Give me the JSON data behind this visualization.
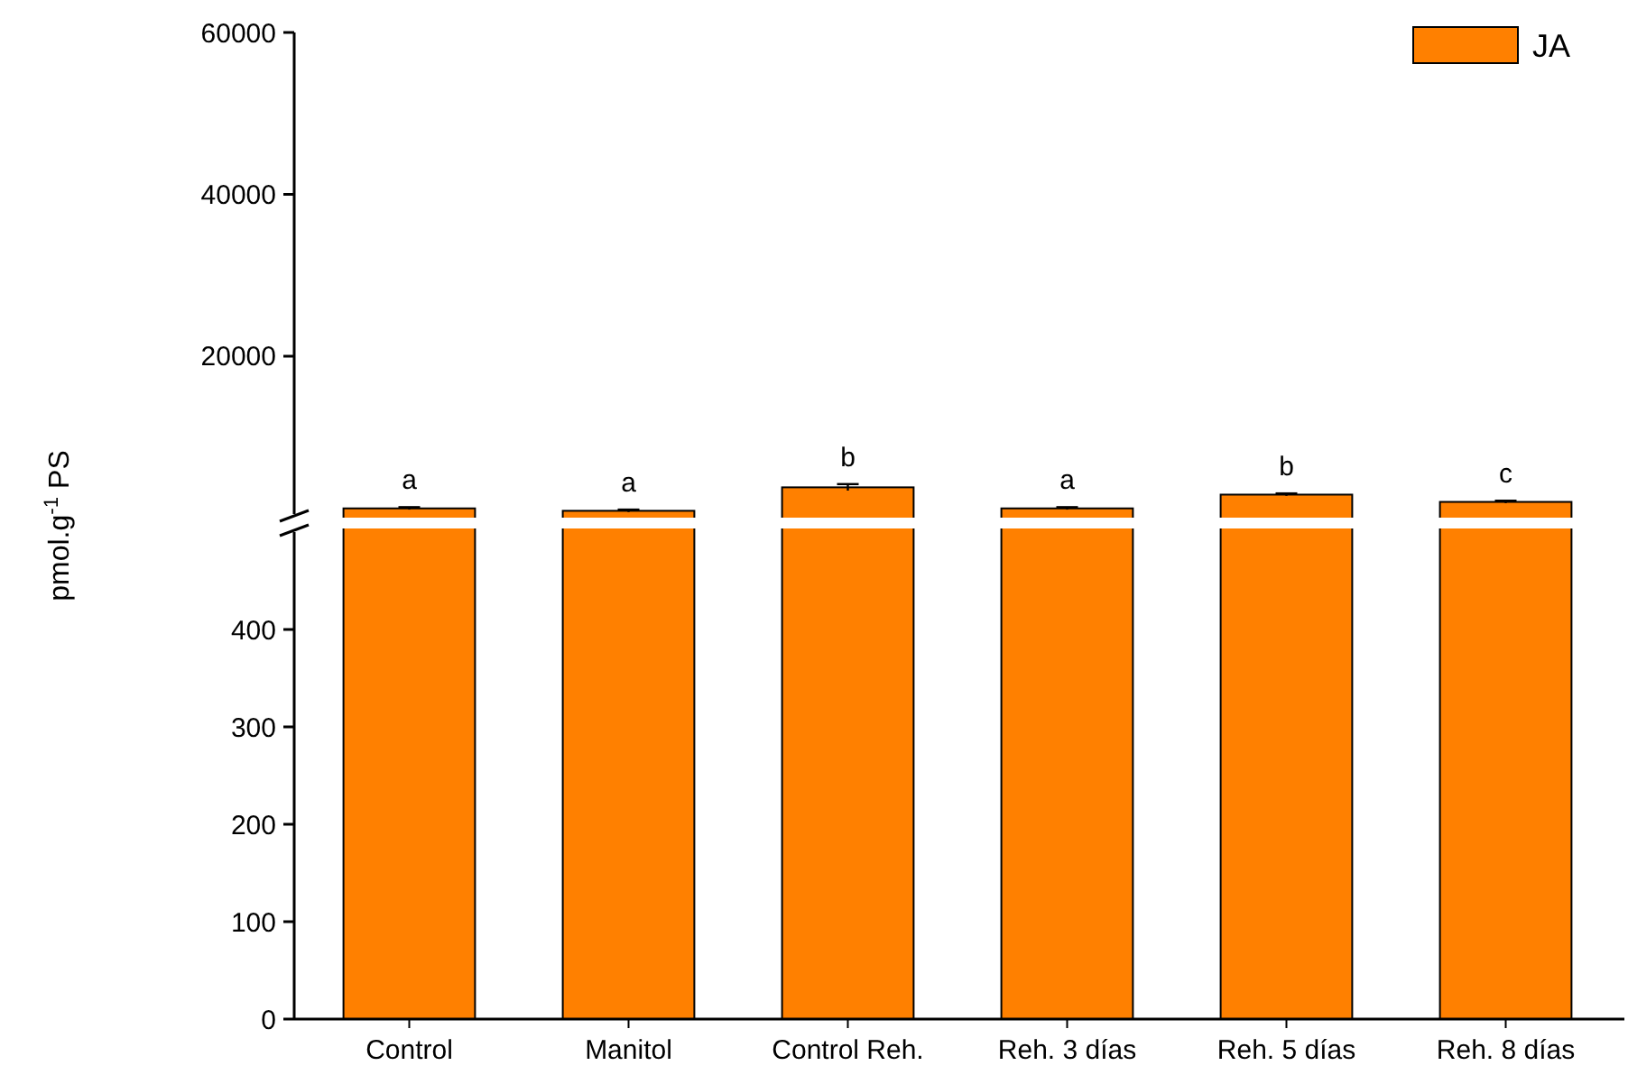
{
  "chart_data": [
    {
      "type": "bar",
      "ylabel": "pmol.g$^{-1}$ PS",
      "series": [
        {
          "name": "JA",
          "color": "#ff8000",
          "values": [
            1200,
            900,
            3800,
            1200,
            2900,
            2000
          ],
          "errors": [
            150,
            150,
            400,
            150,
            150,
            150
          ]
        }
      ],
      "ylim": [
        500,
        60000
      ],
      "yticks": [
        20000,
        40000,
        60000
      ],
      "tick_labels": "y",
      "legend": "top right",
      "annotations": [
        "a",
        "a",
        "b",
        "a",
        "b",
        "c"
      ]
    },
    {
      "type": "bar",
      "categories": [
        "Control",
        "Manitol",
        "Control Reh.",
        "Reh. 3 días",
        "Reh. 5 días",
        "Reh. 8 días"
      ],
      "ylim": [
        0,
        500
      ],
      "yticks": [
        0,
        100,
        200,
        300,
        400
      ]
    }
  ]
}
